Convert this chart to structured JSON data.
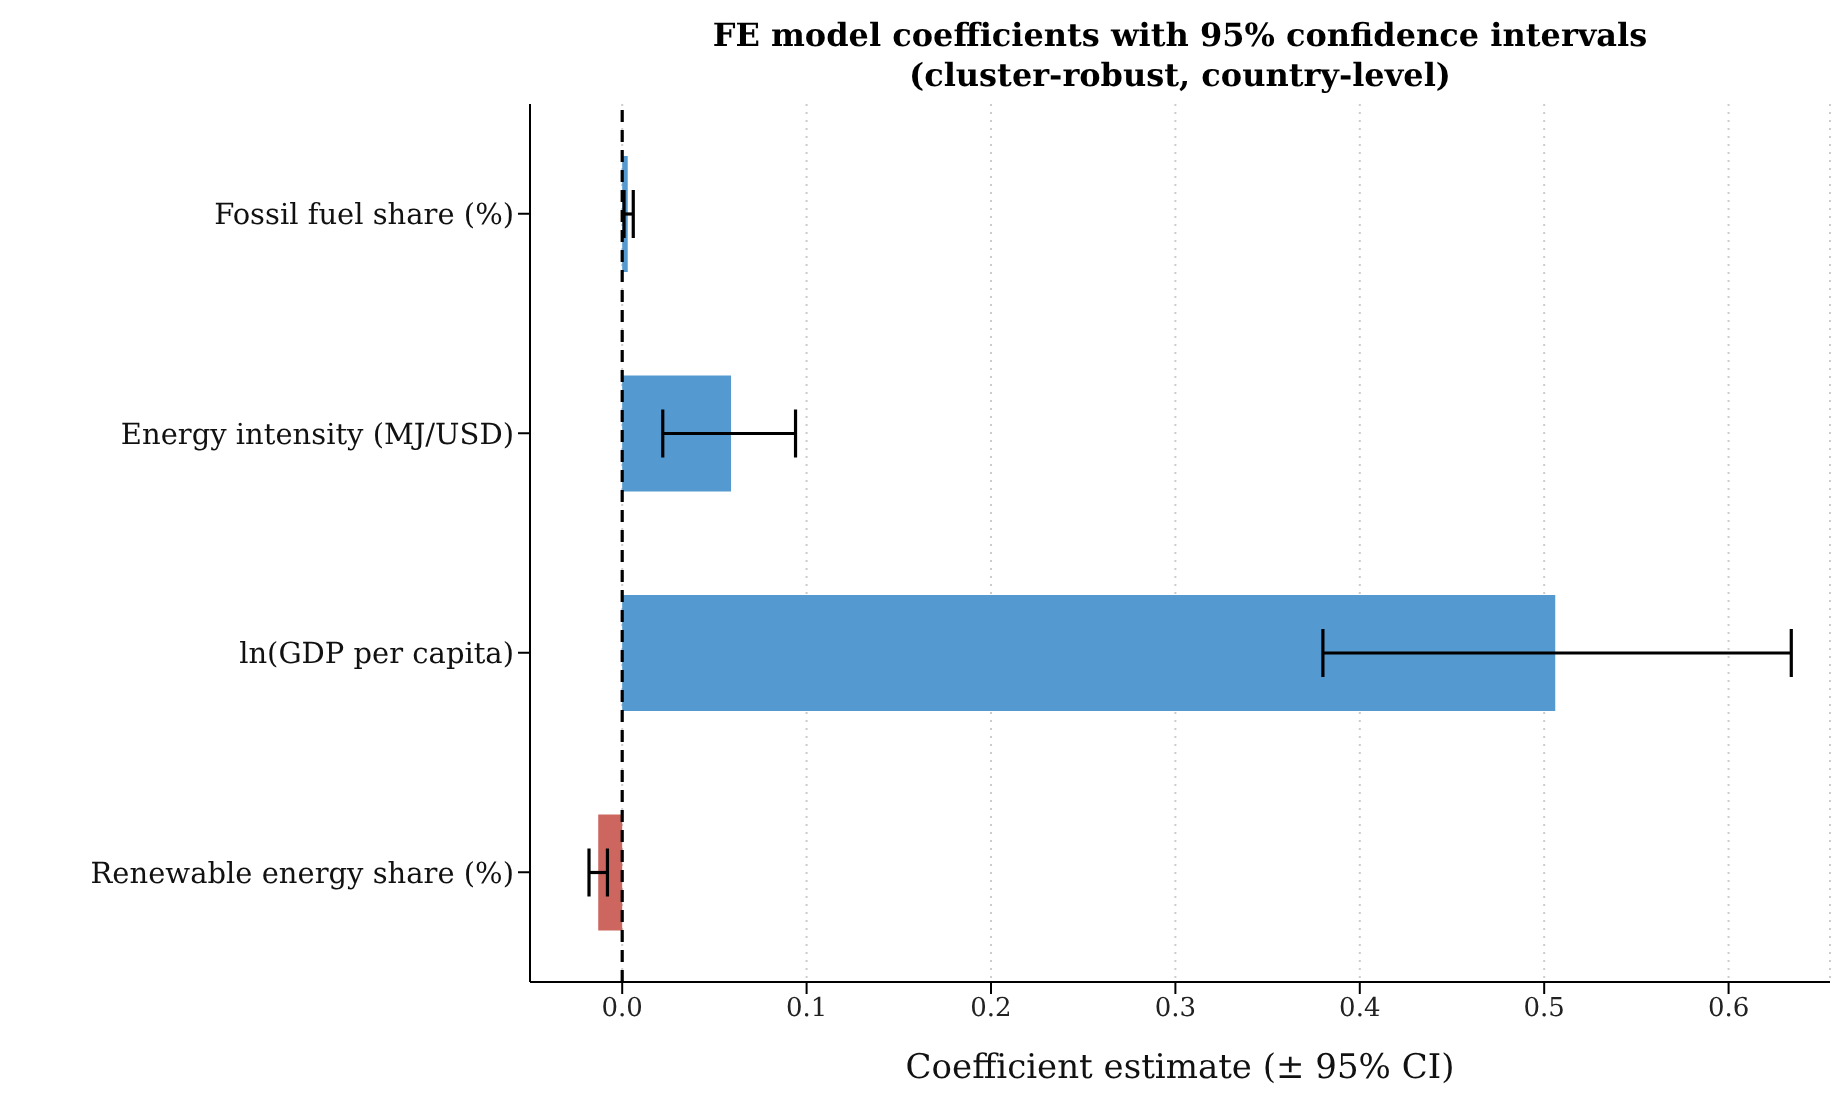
{
  "chart_data": {
    "type": "bar",
    "orientation": "horizontal",
    "title": "FE model coefficients with 95% confidence intervals\n(cluster-robust, country-level)",
    "xlabel": "Coefficient estimate (± 95% CI)",
    "categories": [
      "Fossil fuel share (%)",
      "Energy intensity (MJ/USD)",
      "ln(GDP per capita)",
      "Renewable energy share (%)"
    ],
    "values": [
      0.003,
      0.059,
      0.506,
      -0.013
    ],
    "colors": [
      "#5499d0",
      "#5499d0",
      "#5499d0",
      "#cd665e"
    ],
    "errors": [
      [
        0.001,
        0.006
      ],
      [
        0.022,
        0.094
      ],
      [
        0.38,
        0.634
      ],
      [
        -0.018,
        -0.008
      ]
    ],
    "xlim": [
      -0.05,
      0.655
    ],
    "xticks": [
      {
        "value": 0,
        "label": "0.0"
      },
      0.1,
      0.2,
      0.3,
      0.4,
      0.5,
      0.6
    ],
    "ref_lines": [
      {
        "axis": "x",
        "value": 0,
        "color": "#000000",
        "line_style": "dashed"
      }
    ],
    "grid": "x"
  }
}
